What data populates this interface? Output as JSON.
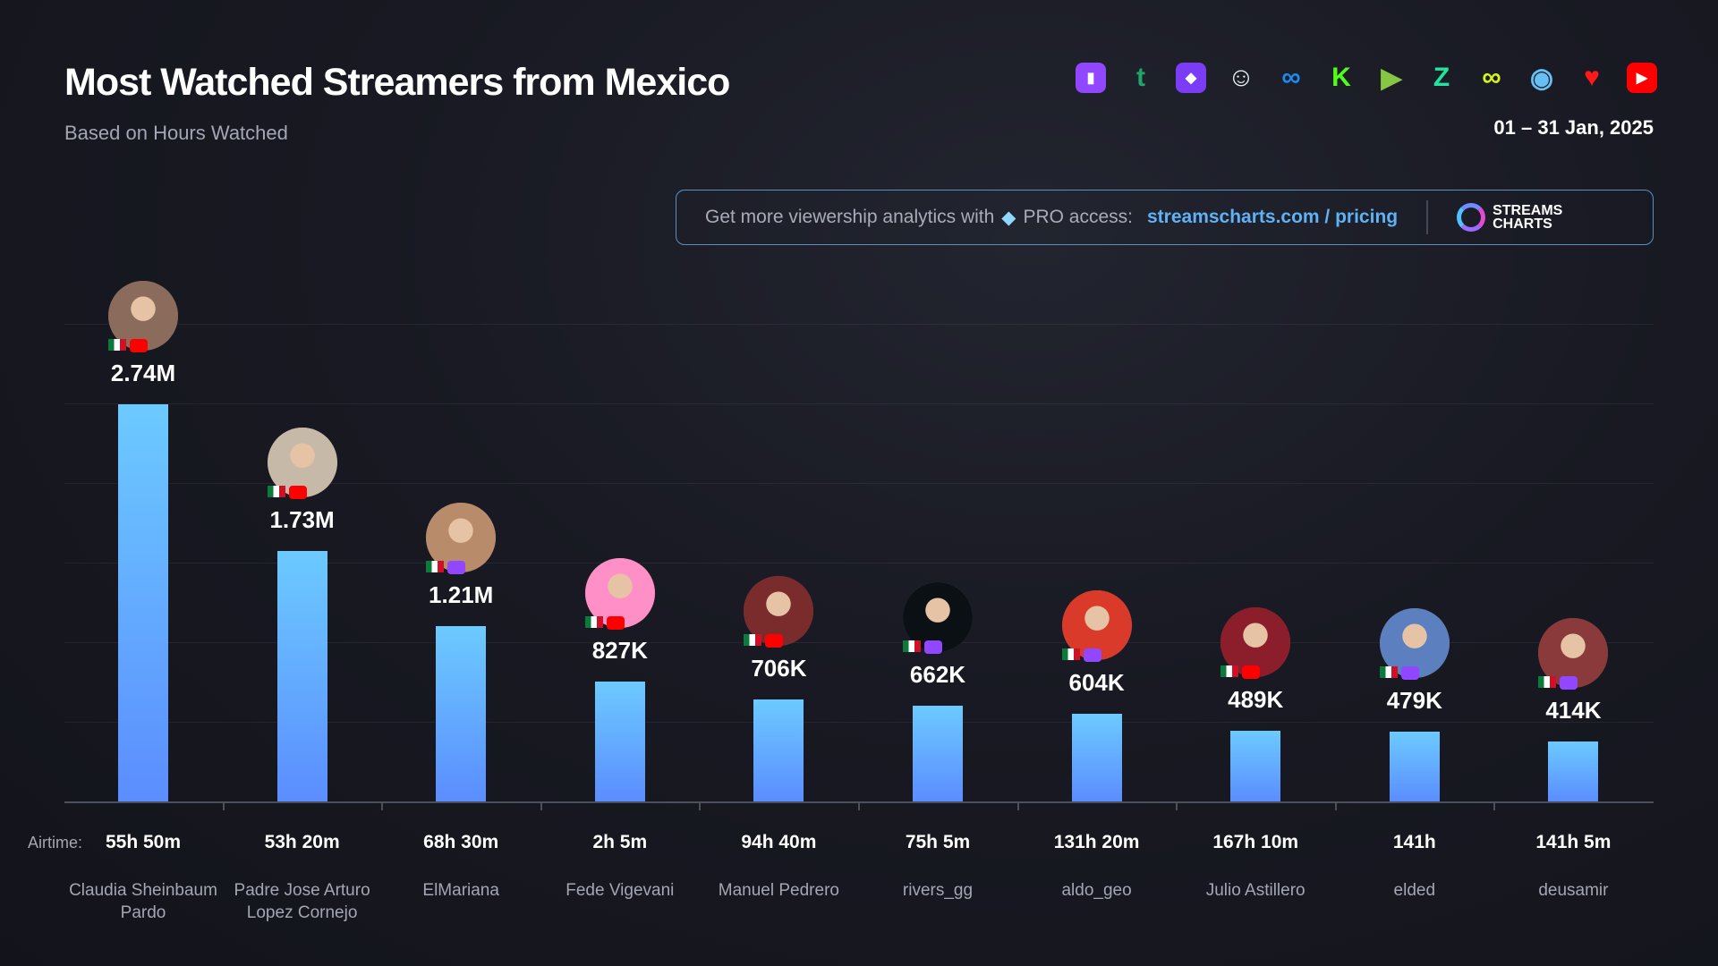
{
  "header": {
    "title": "Most Watched Streamers from Mexico",
    "subtitle": "Based on Hours Watched",
    "date": "01 – 31 Jan, 2025"
  },
  "platforms": [
    {
      "name": "twitch-icon",
      "color": "#9146ff"
    },
    {
      "name": "trovo-icon",
      "color": "#1fa56a"
    },
    {
      "name": "kick-bird-icon",
      "color": "#7b3cf5"
    },
    {
      "name": "bigo-icon",
      "color": "#e8f5f5"
    },
    {
      "name": "facebook-gaming-icon",
      "color": "#1b8cf0"
    },
    {
      "name": "kick-icon",
      "color": "#53fc18"
    },
    {
      "name": "rumble-icon",
      "color": "#85c742"
    },
    {
      "name": "zhanqi-icon",
      "color": "#1fe5a0"
    },
    {
      "name": "loco-icon",
      "color": "#d7f516"
    },
    {
      "name": "steam-icon",
      "color": "#66c0f4"
    },
    {
      "name": "vk-play-icon",
      "color": "#ff1a1a"
    },
    {
      "name": "youtube-icon",
      "color": "#ff0000"
    }
  ],
  "banner": {
    "text": "Get more viewership analytics with",
    "pro": "PRO access:",
    "link": "streamscharts.com / pricing",
    "logo_line1": "STREAMS",
    "logo_line2": "CHARTS"
  },
  "chart_data": {
    "type": "bar",
    "title": "Most Watched Streamers from Mexico",
    "subtitle": "Based on Hours Watched",
    "airtime_label": "Airtime:",
    "categories": [
      "Claudia Sheinbaum Pardo",
      "Padre Jose Arturo Lopez Cornejo",
      "ElMariana",
      "Fede Vigevani",
      "Manuel Pedrero",
      "rivers_gg",
      "aldo_geo",
      "Julio Astillero",
      "elded",
      "deusamir"
    ],
    "values": [
      2740000,
      1730000,
      1210000,
      827000,
      706000,
      662000,
      604000,
      489000,
      479000,
      414000
    ],
    "labels": [
      "2.74M",
      "1.73M",
      "1.21M",
      "827K",
      "706K",
      "662K",
      "604K",
      "489K",
      "479K",
      "414K"
    ],
    "airtime": [
      "55h 50m",
      "53h 20m",
      "68h 30m",
      "2h 5m",
      "94h 40m",
      "75h 5m",
      "131h 20m",
      "167h 10m",
      "141h",
      "141h 5m"
    ],
    "platform": [
      "youtube",
      "youtube",
      "twitch",
      "youtube",
      "youtube",
      "twitch",
      "twitch",
      "youtube",
      "twitch",
      "twitch"
    ],
    "country": "Mexico",
    "ylim": [
      0,
      3000000
    ],
    "grid": true,
    "bar_color": [
      "#6ccaff",
      "#5b8dff"
    ]
  }
}
